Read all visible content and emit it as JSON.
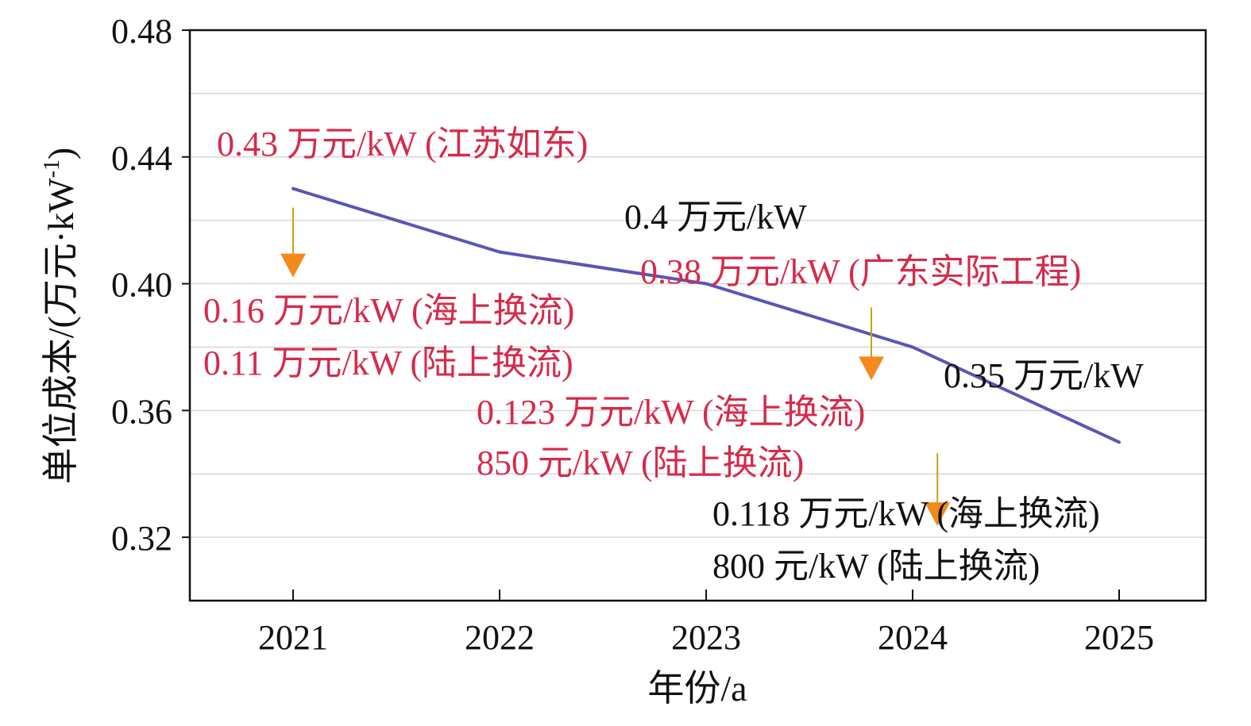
{
  "chart_data": {
    "type": "line",
    "xlabel": "年份/a",
    "ylabel": "单位成本/(万元·kW",
    "ylabel_sup": "-1",
    "ylabel_close": ")",
    "x": [
      "2021",
      "2022",
      "2023",
      "2024",
      "2025"
    ],
    "ylim": [
      0.3,
      0.48
    ],
    "yticks": [
      "0.32",
      "0.36",
      "0.40",
      "0.44",
      "0.48"
    ],
    "ytick_values": [
      0.32,
      0.36,
      0.4,
      0.44,
      0.48
    ],
    "grid": true,
    "series": [
      {
        "values": [
          0.43,
          0.41,
          0.4,
          0.38,
          0.35
        ],
        "color": "#5a55b5"
      }
    ],
    "arrow_color": "#f28a1e",
    "arrows": [
      {
        "x": 0.0,
        "y_from": 0.424,
        "y_to": 0.403
      },
      {
        "x": 2.8,
        "y_from": 0.3925,
        "y_to": 0.3705
      },
      {
        "x": 3.12,
        "y_from": 0.3465,
        "y_to": 0.3245
      }
    ],
    "annotations": [
      {
        "text": "0.43 万元/kW (江苏如东)",
        "color": "#d62a4a",
        "x": 0.0,
        "y": 0.43
      },
      {
        "text": "0.16 万元/kW (海上换流)",
        "color": "#d62a4a",
        "x": 0.0,
        "y": 0.4
      },
      {
        "text": "0.11 万元/kW (陆上换流)",
        "color": "#d62a4a",
        "x": 0.0,
        "y": 0.4
      },
      {
        "text": "0.4 万元/kW",
        "color": "#111111",
        "x": 2.0,
        "y": 0.4
      },
      {
        "text": "0.38 万元/kW (广东实际工程)",
        "color": "#d62a4a",
        "x": 3.0,
        "y": 0.38
      },
      {
        "text": "0.123 万元/kW (海上换流)",
        "color": "#d62a4a",
        "x": 3.0,
        "y": 0.38
      },
      {
        "text": "850 元/kW (陆上换流)",
        "color": "#d62a4a",
        "x": 3.0,
        "y": 0.38
      },
      {
        "text": "0.35 万元/kW",
        "color": "#111111",
        "x": 4.0,
        "y": 0.35
      },
      {
        "text": "0.118 万元/kW (海上换流)",
        "color": "#111111",
        "x": 4.0,
        "y": 0.35
      },
      {
        "text": "800 元/kW (陆上换流)",
        "color": "#111111",
        "x": 4.0,
        "y": 0.35
      }
    ]
  }
}
